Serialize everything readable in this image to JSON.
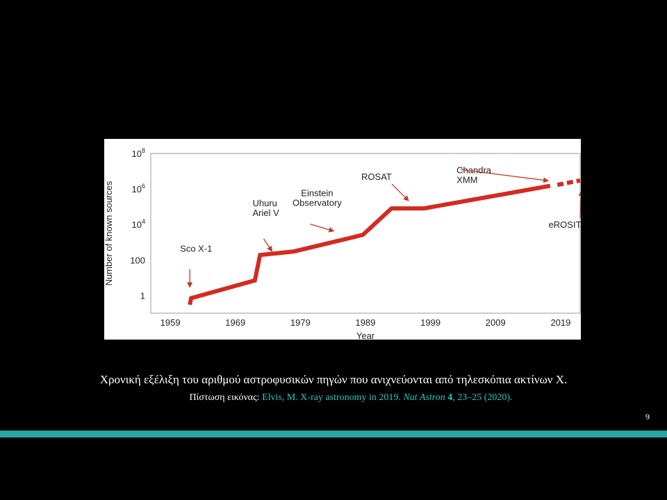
{
  "caption": "Χρονική εξέλιξη του αριθμού αστροφυσικών πηγών που ανιχνεύονται από τηλεσκόπια ακτίνων Χ.",
  "credit": {
    "prefix": "Πίστωση εικόνας: ",
    "ref_part1": "Elvis, M. X-ray astronomy in 2019. ",
    "journal": "Nat Astron",
    "volume": "4",
    "ref_part2": ", 23–25 (2020)."
  },
  "slide_number": "9",
  "colors": {
    "background": "#000000",
    "line": "#d42a20",
    "arrow": "#c4362a",
    "accent_bar": "#2aa6a6",
    "credit_link": "#2ec4c4"
  },
  "chart_data": {
    "type": "line",
    "xlabel": "Year",
    "ylabel": "Number of known sources",
    "x_ticks": [
      1959,
      1969,
      1979,
      1989,
      1999,
      2009,
      2019
    ],
    "y_ticks": [
      {
        "value": 1,
        "label": "1"
      },
      {
        "value": 100,
        "label": "100"
      },
      {
        "value": 10000,
        "label": "10^4"
      },
      {
        "value": 1000000,
        "label": "10^6"
      },
      {
        "value": 100000000,
        "label": "10^8"
      }
    ],
    "xlim": [
      1956,
      2022
    ],
    "ylim": [
      0.1,
      100000000
    ],
    "y_scale": "log",
    "series": [
      {
        "style": "solid",
        "x": [
          1962,
          1962.2,
          1972,
          1972.8,
          1978,
          1988.6,
          1993,
          1998,
          2017.4
        ],
        "y": [
          0.3,
          0.7,
          7,
          190,
          300,
          2600,
          80000,
          80000,
          1500000
        ]
      },
      {
        "style": "dashed",
        "x": [
          2018.5,
          2022
        ],
        "y": [
          1700000,
          3000000
        ]
      }
    ],
    "annotations": [
      {
        "text": [
          "Sco X-1"
        ],
        "x": 1962
      },
      {
        "text": [
          "Uhuru",
          "Ariel V"
        ],
        "x": 1972.5
      },
      {
        "text": [
          "Einstein",
          "Observatory"
        ],
        "x": 1980.5
      },
      {
        "text": [
          "ROSAT"
        ],
        "x": 1990.5
      },
      {
        "text": [
          "Chandra",
          "XMM"
        ],
        "x": 2006
      },
      {
        "text": [
          "eROSITA"
        ],
        "x": 2019
      }
    ]
  }
}
